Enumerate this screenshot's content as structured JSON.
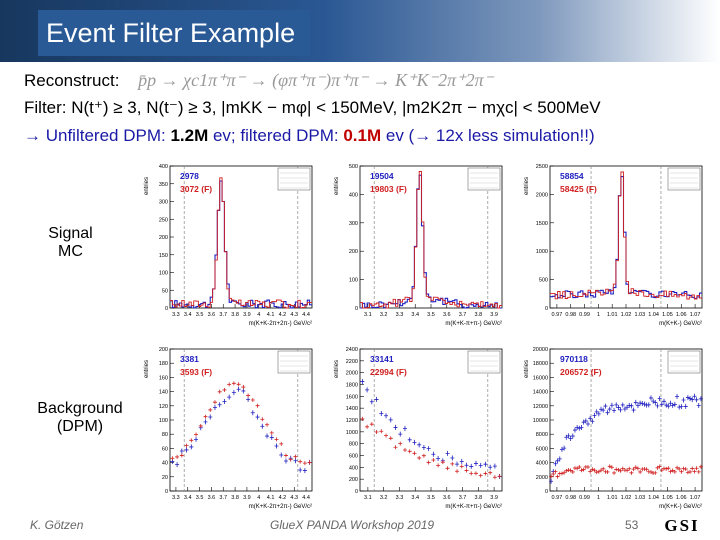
{
  "slide": {
    "title": "Event Filter Example",
    "reconstruct_label": "Reconstruct:",
    "reconstruct_formula": "p̄p → χc1π⁺π⁻ → (φπ⁺π⁻)π⁺π⁻ → K⁺K⁻2π⁺2π⁻",
    "filter_text": "Filter: N(t⁺) ≥ 3, N(t⁻) ≥ 3, |mKK − mφ| < 150MeV, |m2K2π − mχc| < 500MeV",
    "summary_prefix": "→ Unfiltered DPM: ",
    "summary_unfiltered": "1.2M",
    "summary_mid": " ev; filtered DPM: ",
    "summary_filtered": "0.1M",
    "summary_suffix": " ev (→ 12x less simulation!!)",
    "row_signal": "Signal\nMC",
    "row_background": "Background\n(DPM)"
  },
  "footer": {
    "author": "K. Götzen",
    "event": "GlueX PANDA Workshop 2019",
    "page": "53",
    "logo_text": "GSI"
  },
  "chart_data": [
    {
      "id": "sig-chic",
      "type": "line",
      "row": "Signal MC",
      "ylabel": "entries",
      "xlabel": "m(K+K-2π+2π-) GeV/c²",
      "count_blue": "2978",
      "count_red": "3072 (F)",
      "yticks": [
        0,
        50,
        100,
        150,
        200,
        250,
        300,
        350,
        400
      ],
      "xticks": [
        "3.3",
        "3.4",
        "3.5",
        "3.6",
        "3.7",
        "3.8",
        "3.9",
        "4",
        "4.1",
        "4.2",
        "4.3",
        "4.4"
      ]
    },
    {
      "id": "sig-chic-pipi",
      "type": "line",
      "row": "Signal MC",
      "ylabel": "entries",
      "xlabel": "m(K+K-π+π-) GeV/c²",
      "count_blue": "19504",
      "count_red": "19803 (F)",
      "yticks": [
        0,
        100,
        200,
        300,
        400,
        500
      ],
      "xticks": [
        "3.1",
        "3.2",
        "3.3",
        "3.4",
        "3.5",
        "3.6",
        "3.7",
        "3.8",
        "3.9"
      ]
    },
    {
      "id": "sig-phi",
      "type": "line",
      "row": "Signal MC",
      "ylabel": "entries",
      "xlabel": "m(K+K-) GeV/c²",
      "count_blue": "58854",
      "count_red": "58425 (F)",
      "yticks": [
        0,
        500,
        1000,
        1500,
        2000,
        2500
      ],
      "xticks": [
        "0.97",
        "0.98",
        "0.99",
        "1",
        "1.01",
        "1.02",
        "1.03",
        "1.04",
        "1.05",
        "1.06",
        "1.07"
      ]
    },
    {
      "id": "bkg-chic",
      "type": "scatter",
      "row": "Background (DPM)",
      "ylabel": "entries",
      "xlabel": "m(K+K-2π+2π-) GeV/c²",
      "count_blue": "3381",
      "count_red": "3593 (F)",
      "yticks": [
        0,
        20,
        40,
        60,
        80,
        100,
        120,
        140,
        160,
        180,
        200
      ],
      "xticks": [
        "3.3",
        "3.4",
        "3.5",
        "3.6",
        "3.7",
        "3.8",
        "3.9",
        "4",
        "4.1",
        "4.2",
        "4.3",
        "4.4"
      ]
    },
    {
      "id": "bkg-chic-pipi",
      "type": "scatter",
      "row": "Background (DPM)",
      "ylabel": "entries",
      "xlabel": "m(K+K-π+π-) GeV/c²",
      "count_blue": "33141",
      "count_red": "22994 (F)",
      "yticks": [
        0,
        200,
        400,
        600,
        800,
        1000,
        1200,
        1400,
        1600,
        1800,
        2000,
        2200,
        2400
      ],
      "xticks": [
        "3.1",
        "3.2",
        "3.3",
        "3.4",
        "3.5",
        "3.6",
        "3.7",
        "3.8",
        "3.9"
      ]
    },
    {
      "id": "bkg-phi",
      "type": "scatter",
      "row": "Background (DPM)",
      "ylabel": "entries",
      "xlabel": "m(K+K-) GeV/c²",
      "count_blue": "970118",
      "count_red": "206572 (F)",
      "yticks": [
        0,
        2000,
        4000,
        6000,
        8000,
        10000,
        12000,
        14000,
        16000,
        18000,
        20000
      ],
      "xticks": [
        "0.97",
        "0.98",
        "0.99",
        "1",
        "1.01",
        "1.02",
        "1.03",
        "1.04",
        "1.05",
        "1.06",
        "1.07"
      ]
    }
  ]
}
